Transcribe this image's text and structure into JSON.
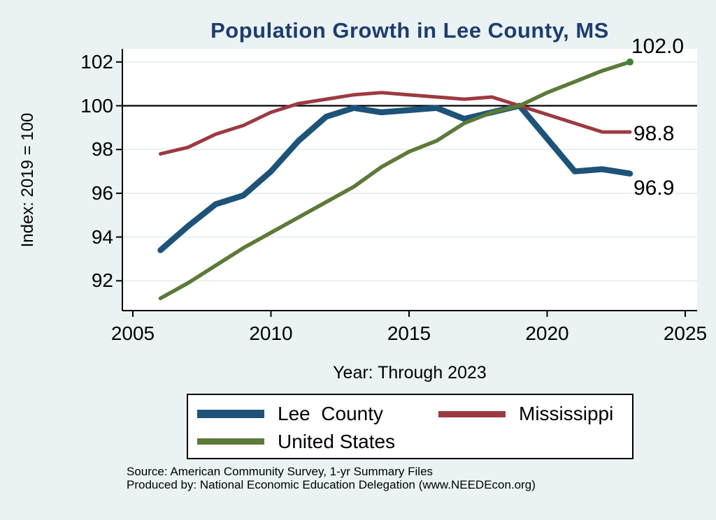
{
  "chart_data": {
    "type": "line",
    "title": "Population Growth in Lee County, MS",
    "xlabel": "Year: Through 2023",
    "ylabel": "Index: 2019 = 100",
    "x": [
      2006,
      2007,
      2008,
      2009,
      2010,
      2011,
      2012,
      2013,
      2014,
      2015,
      2016,
      2017,
      2018,
      2019,
      2020,
      2021,
      2022,
      2023
    ],
    "series": [
      {
        "name": "Lee  County",
        "color": "#1d5379",
        "values": [
          93.4,
          94.5,
          95.5,
          95.9,
          97.0,
          98.4,
          99.5,
          99.9,
          99.7,
          99.8,
          99.9,
          99.4,
          99.7,
          100.0,
          98.5,
          97.0,
          97.1,
          96.9
        ]
      },
      {
        "name": "Mississippi",
        "color": "#9c3a40",
        "values": [
          97.8,
          98.1,
          98.7,
          99.1,
          99.7,
          100.1,
          100.3,
          100.5,
          100.6,
          100.5,
          100.4,
          100.3,
          100.4,
          100.0,
          99.6,
          99.2,
          98.8,
          98.8
        ]
      },
      {
        "name": "United States",
        "color": "#5c7a38",
        "values": [
          91.2,
          91.9,
          92.7,
          93.5,
          94.2,
          94.9,
          95.6,
          96.3,
          97.2,
          97.9,
          98.4,
          99.2,
          99.7,
          100.0,
          100.6,
          101.1,
          101.6,
          102.0
        ],
        "end_marker": true
      }
    ],
    "x_ticks": [
      2005,
      2010,
      2015,
      2020,
      2025
    ],
    "y_ticks": [
      92,
      94,
      96,
      98,
      100,
      102
    ],
    "xlim": [
      2004.6,
      2025.4
    ],
    "ylim": [
      90.6,
      102.6
    ],
    "reference_line_y": 100,
    "grid": true,
    "legend_position": "bottom"
  },
  "end_labels": {
    "united_states": "102.0",
    "mississippi": "98.8",
    "lee_county": "96.9"
  },
  "legend": {
    "items": [
      {
        "label": "Lee  County"
      },
      {
        "label": "Mississippi"
      },
      {
        "label": "United States"
      }
    ]
  },
  "source": {
    "line1": "Source: American Community Survey, 1-yr Summary Files",
    "line2": "Produced by: National Economic Education Delegation (www.NEEDEcon.org)"
  },
  "colors": {
    "background": "#eaf2f3",
    "plot_background": "#ffffff",
    "gridline": "#e4edf0",
    "title": "#1e3d6f",
    "axis": "#000000",
    "reference_line": "#000000",
    "lee_county": "#1d5379",
    "mississippi": "#9c3a40",
    "united_states": "#5c7a38",
    "end_marker": "#3c8431"
  }
}
